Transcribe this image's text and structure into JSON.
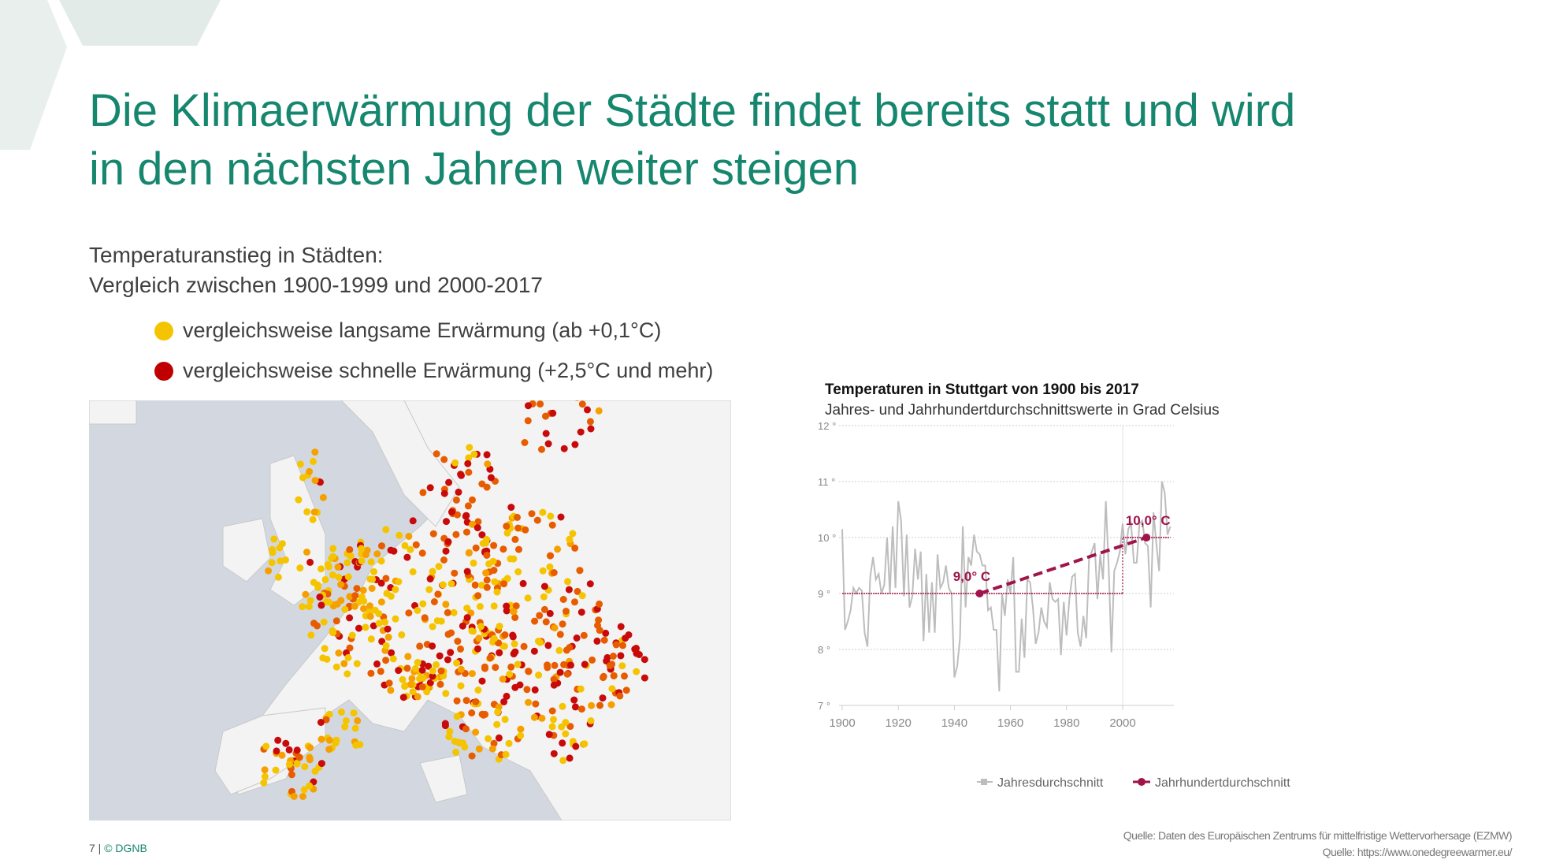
{
  "slide": {
    "title_line1": "Die Klimaerwärmung der Städte findet bereits statt und wird",
    "title_line2": "in den nächsten Jahren weiter steigen",
    "subtitle_line1": "Temperaturanstieg  in Städten:",
    "subtitle_line2": "Vergleich zwischen 1900-1999 und 2000-2017",
    "legend": [
      {
        "label": "vergleichsweise langsame Erwärmung (ab +0,1°C)",
        "color": "#f5c400"
      },
      {
        "label": "vergleichsweise schnelle Erwärmung (+2,5°C und mehr)",
        "color": "#c00000"
      }
    ],
    "footer_page": "7 | ",
    "footer_brand": "© DGNB",
    "source1": "Quelle: Daten des Europäischen Zentrums für mittelfristige Wettervorhersage (EZMW)",
    "source2": "Quelle: https://www.onedegreewarmer.eu/"
  },
  "colors": {
    "accent": "#16876e",
    "annual": "#bdbdbd",
    "century": "#a0144b"
  },
  "chart_data": {
    "type": "line",
    "title": "Temperaturen in Stuttgart von 1900 bis 2017",
    "subtitle": "Jahres- und Jahrhundertdurchschnittswerte in Grad Celsius",
    "xlabel": "",
    "ylabel": "",
    "xlim": [
      1900,
      2017
    ],
    "ylim": [
      7,
      12
    ],
    "yticks": [
      {
        "v": 12,
        "label": "12 °"
      },
      {
        "v": 11,
        "label": "11 °"
      },
      {
        "v": 10,
        "label": "10 °"
      },
      {
        "v": 9,
        "label": "9 °"
      },
      {
        "v": 8,
        "label": "8 °"
      },
      {
        "v": 7,
        "label": "7 °"
      }
    ],
    "xticks": [
      {
        "v": 1900,
        "label": "1900"
      },
      {
        "v": 1920,
        "label": "1920"
      },
      {
        "v": 1940,
        "label": "1940"
      },
      {
        "v": 1960,
        "label": "1960"
      },
      {
        "v": 1980,
        "label": "1980"
      },
      {
        "v": 2000,
        "label": "2000"
      }
    ],
    "grid": true,
    "legend_position": "bottom",
    "series": [
      {
        "name": "Jahresdurchschnitt",
        "x_start": 1900,
        "values": [
          10.15,
          8.35,
          8.5,
          8.7,
          9.1,
          9.0,
          9.1,
          9.05,
          8.3,
          8.05,
          9.3,
          9.65,
          9.25,
          9.35,
          9.0,
          9.15,
          10.0,
          9.0,
          10.2,
          9.1,
          10.65,
          10.3,
          8.95,
          10.05,
          8.75,
          8.95,
          9.8,
          9.25,
          9.75,
          8.15,
          9.35,
          8.3,
          9.2,
          8.3,
          9.7,
          9.1,
          9.2,
          9.5,
          9.1,
          9.0,
          7.5,
          7.7,
          8.2,
          10.2,
          8.75,
          9.65,
          9.5,
          10.05,
          9.75,
          9.7,
          9.5,
          9.5,
          8.7,
          8.75,
          8.35,
          8.35,
          7.25,
          9.0,
          8.6,
          9.25,
          9.0,
          9.65,
          7.6,
          7.6,
          8.55,
          7.85,
          9.25,
          9.2,
          8.75,
          8.1,
          8.3,
          8.75,
          8.5,
          8.4,
          9.2,
          8.9,
          8.85,
          8.9,
          7.9,
          8.85,
          8.25,
          8.9,
          9.3,
          9.35,
          8.3,
          8.05,
          8.6,
          8.2,
          9.6,
          9.75,
          9.9,
          8.9,
          9.7,
          9.25,
          10.65,
          9.5,
          7.95,
          9.4,
          9.55,
          9.75,
          10.25,
          9.7,
          10.15,
          10.25,
          9.55,
          9.55,
          10.25,
          10.3,
          9.9,
          9.85,
          8.75,
          10.45,
          9.9,
          9.4,
          11.0,
          10.8,
          10.05,
          10.2
        ]
      },
      {
        "name": "Jahrhundertdurchschnitt",
        "periods": [
          {
            "from": 1900,
            "to": 2000,
            "value": 9.0
          },
          {
            "from": 2000,
            "to": 2017,
            "value": 10.0
          }
        ],
        "trend": [
          {
            "x": 1949,
            "y": 9.0
          },
          {
            "x": 2008.5,
            "y": 10.0
          }
        ]
      }
    ],
    "annotations": [
      {
        "x": 1949,
        "y": 9.0,
        "label": "9,0° C"
      },
      {
        "x": 2008.5,
        "y": 10.0,
        "label": "10,0° C"
      }
    ]
  }
}
